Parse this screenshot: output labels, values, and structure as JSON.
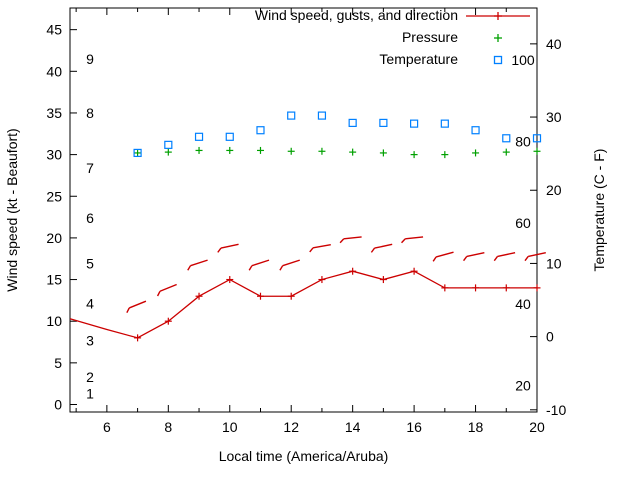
{
  "chart_data": {
    "type": "line",
    "title": "",
    "xlabel": "Local time (America/Aruba)",
    "ylabel": "Wind speed (kt - Beaufort)",
    "y2label": "Temperature (C - F)",
    "xlim": [
      4.8,
      20
    ],
    "xticks": [
      6,
      8,
      10,
      12,
      14,
      16,
      18,
      20
    ],
    "xminor_ticks": [
      5,
      7,
      9,
      11,
      13,
      15,
      17,
      19
    ],
    "left_axis": {
      "lim": [
        -0.9,
        47.6
      ],
      "ticks": [
        0,
        5,
        10,
        15,
        20,
        25,
        30,
        35,
        40,
        45
      ]
    },
    "right_axis": {
      "lim": [
        -10.3,
        44.9
      ],
      "ticks": [
        -10,
        0,
        10,
        20,
        30,
        40
      ]
    },
    "beaufort_labels": [
      {
        "text": "1",
        "kt": 1.3
      },
      {
        "text": "2",
        "kt": 3.3
      },
      {
        "text": "3",
        "kt": 7.7
      },
      {
        "text": "4",
        "kt": 12.1
      },
      {
        "text": "5",
        "kt": 16.9
      },
      {
        "text": "6",
        "kt": 22.4
      },
      {
        "text": "7",
        "kt": 28.4
      },
      {
        "text": "8",
        "kt": 35.0
      },
      {
        "text": "9",
        "kt": 41.5
      }
    ],
    "fahrenheit_labels": [
      20,
      40,
      60,
      80,
      100
    ],
    "hours": [
      7,
      8,
      9,
      10,
      11,
      12,
      13,
      14,
      15,
      16,
      17,
      18,
      19,
      20
    ],
    "legend_order": [
      "wind",
      "pressure",
      "temperature"
    ],
    "series": {
      "wind": {
        "label": "Wind speed, gusts, and direction",
        "color": "#cc0000",
        "axis": "left",
        "style": "linespoints",
        "line_x": [
          4.8,
          6,
          7,
          8,
          9,
          10,
          11,
          12,
          13,
          14,
          15,
          16,
          17,
          18,
          19,
          20
        ],
        "line_y": [
          10.3,
          9,
          8,
          10,
          13,
          15,
          13,
          13,
          15,
          16,
          15,
          16,
          14,
          14,
          14,
          14
        ],
        "point_hours": [
          7,
          8,
          9,
          10,
          11,
          12,
          13,
          14,
          15,
          16,
          17,
          18,
          19,
          20
        ],
        "point_kt": [
          8,
          10,
          13,
          15,
          13,
          13,
          15,
          16,
          15,
          16,
          14,
          14,
          14,
          14
        ],
        "gust_kt": [
          12,
          14,
          17,
          19,
          17,
          17,
          19,
          20,
          19,
          20,
          18,
          18,
          18,
          18
        ],
        "gust_angle_deg": [
          22,
          22,
          18,
          12,
          18,
          18,
          10,
          6,
          12,
          6,
          15,
          12,
          12,
          12
        ]
      },
      "pressure": {
        "label": "Pressure",
        "color": "#00a000",
        "axis": "left",
        "style": "points-plus",
        "values_kt": [
          30.2,
          30.3,
          30.5,
          30.5,
          30.5,
          30.4,
          30.4,
          30.3,
          30.2,
          30.0,
          30.0,
          30.2,
          30.3,
          30.4
        ]
      },
      "temperature": {
        "label": "Temperature",
        "color": "#0080ff",
        "axis": "right",
        "style": "points-square",
        "values_c": [
          25.1,
          26.2,
          27.3,
          27.3,
          28.2,
          30.2,
          30.2,
          29.2,
          29.2,
          29.1,
          29.1,
          28.2,
          27.1,
          27.1
        ]
      }
    }
  }
}
